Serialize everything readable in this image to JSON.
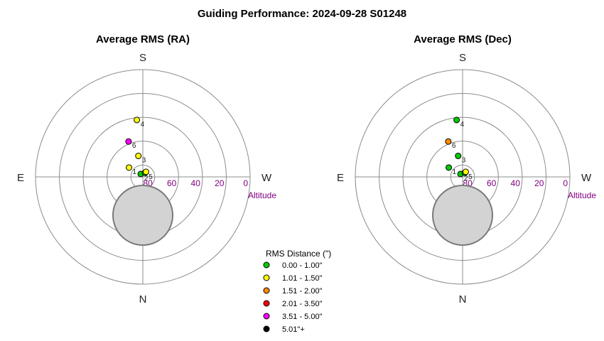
{
  "title": "Guiding Performance: 2024-09-28 S01248",
  "compass": {
    "north": "N",
    "south": "S",
    "east": "E",
    "west": "W"
  },
  "axis": {
    "label": "Altitude",
    "ticks": [
      "80",
      "60",
      "40",
      "20",
      "0"
    ],
    "rings": [
      80,
      60,
      40,
      20,
      0
    ]
  },
  "legend": {
    "title": "RMS Distance (\")",
    "items": [
      {
        "label": "0.00 - 1.00\"",
        "color": "#00cc00"
      },
      {
        "label": "1.01 - 1.50\"",
        "color": "#ffff00"
      },
      {
        "label": "1.51 - 2.00\"",
        "color": "#ff8c00"
      },
      {
        "label": "2.01 - 3.50\"",
        "color": "#ff0000"
      },
      {
        "label": "3.51 - 5.00\"",
        "color": "#ff00ff"
      },
      {
        "label": "5.01\"+",
        "color": "#000000"
      }
    ]
  },
  "chart_data": [
    {
      "type": "scatter",
      "projection": "polar altitude-azimuth (zenith at center, S up, W right)",
      "title": "Average RMS (RA)",
      "points": [
        {
          "label": "1",
          "azimuth": 124,
          "altitude": 76,
          "rms_bin": "1.01 - 1.50\""
        },
        {
          "label": "2",
          "azimuth": 144,
          "altitude": 87,
          "rms_bin": "0.00 - 1.00\""
        },
        {
          "label": "3",
          "azimuth": 168,
          "altitude": 72,
          "rms_bin": "1.01 - 1.50\""
        },
        {
          "label": "4",
          "azimuth": 174,
          "altitude": 42,
          "rms_bin": "1.01 - 1.50\""
        },
        {
          "label": "5",
          "azimuth": 208,
          "altitude": 86,
          "rms_bin": "0.00 - 1.00\""
        },
        {
          "label": "6",
          "azimuth": 158,
          "altitude": 58,
          "rms_bin": "3.51 - 5.00\""
        },
        {
          "label": "",
          "azimuth": 212,
          "altitude": 85,
          "rms_bin": "1.01 - 1.50\""
        }
      ]
    },
    {
      "type": "scatter",
      "projection": "polar altitude-azimuth (zenith at center, S up, W right)",
      "title": "Average RMS (Dec)",
      "points": [
        {
          "label": "1",
          "azimuth": 124,
          "altitude": 76,
          "rms_bin": "0.00 - 1.00\""
        },
        {
          "label": "2",
          "azimuth": 144,
          "altitude": 87,
          "rms_bin": "0.00 - 1.00\""
        },
        {
          "label": "3",
          "azimuth": 168,
          "altitude": 72,
          "rms_bin": "0.00 - 1.00\""
        },
        {
          "label": "4",
          "azimuth": 174,
          "altitude": 42,
          "rms_bin": "0.00 - 1.00\""
        },
        {
          "label": "5",
          "azimuth": 208,
          "altitude": 86,
          "rms_bin": "0.00 - 1.00\""
        },
        {
          "label": "6",
          "azimuth": 158,
          "altitude": 58,
          "rms_bin": "1.51 - 2.00\""
        },
        {
          "label": "",
          "azimuth": 212,
          "altitude": 85,
          "rms_bin": "1.01 - 1.50\""
        }
      ]
    }
  ]
}
